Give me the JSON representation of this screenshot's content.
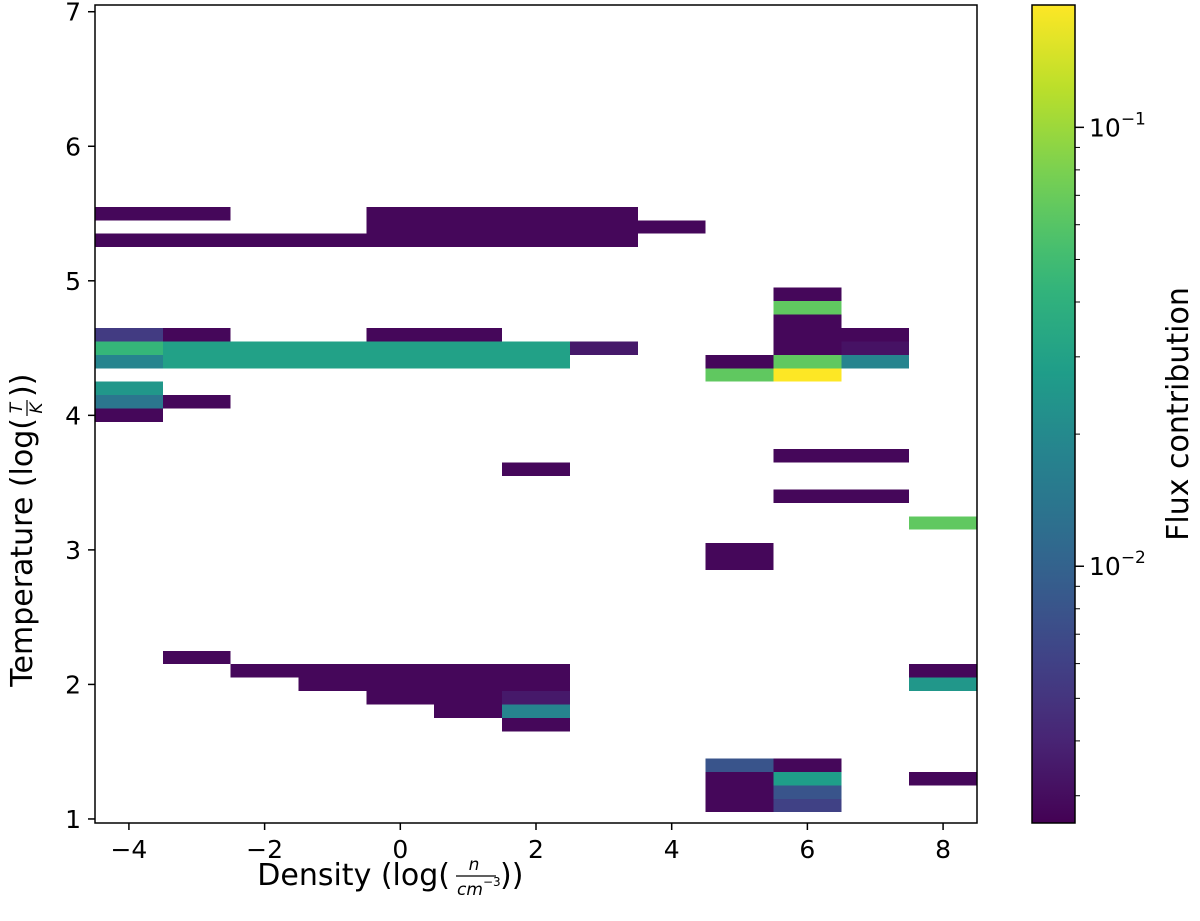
{
  "chart_data": {
    "type": "heatmap",
    "title": "",
    "xlabel": "Density (log(n/cm^-3))",
    "ylabel": "Temperature (log(T/K))",
    "xlim": [
      -4.5,
      8.5
    ],
    "ylim": [
      0.97,
      7.05
    ],
    "x_ticks": [
      -4,
      -2,
      0,
      2,
      4,
      6,
      8
    ],
    "x_tick_labels": [
      "−4",
      "−2",
      "0",
      "2",
      "4",
      "6",
      "8"
    ],
    "y_ticks": [
      1,
      2,
      3,
      4,
      5,
      6,
      7
    ],
    "y_tick_labels": [
      "1",
      "2",
      "3",
      "4",
      "5",
      "6",
      "7"
    ],
    "x_bin_width": 1,
    "y_bin_height": 0.1,
    "colorbar": {
      "label": "Flux contribution",
      "scale": "log",
      "colormap": "viridis",
      "vmin": 0.0026,
      "vmax": 0.19,
      "ticks": [
        0.01,
        0.1
      ],
      "tick_labels": [
        "10^-2",
        "10^-1"
      ]
    },
    "cells": [
      {
        "x": -4,
        "y": 5.5,
        "value": 0.0028
      },
      {
        "x": -3,
        "y": 5.5,
        "value": 0.0028
      },
      {
        "x": 0,
        "y": 5.5,
        "value": 0.0028
      },
      {
        "x": 1,
        "y": 5.5,
        "value": 0.0028
      },
      {
        "x": 2,
        "y": 5.5,
        "value": 0.0028
      },
      {
        "x": 3,
        "y": 5.5,
        "value": 0.0028
      },
      {
        "x": 0,
        "y": 5.4,
        "value": 0.0028
      },
      {
        "x": 1,
        "y": 5.4,
        "value": 0.0028
      },
      {
        "x": 2,
        "y": 5.4,
        "value": 0.0028
      },
      {
        "x": 3,
        "y": 5.4,
        "value": 0.0028
      },
      {
        "x": 4,
        "y": 5.4,
        "value": 0.0028
      },
      {
        "x": -4,
        "y": 5.3,
        "value": 0.0028
      },
      {
        "x": -3,
        "y": 5.3,
        "value": 0.0028
      },
      {
        "x": -2,
        "y": 5.3,
        "value": 0.0028
      },
      {
        "x": -1,
        "y": 5.3,
        "value": 0.0028
      },
      {
        "x": 0,
        "y": 5.3,
        "value": 0.0028
      },
      {
        "x": 1,
        "y": 5.3,
        "value": 0.0028
      },
      {
        "x": 2,
        "y": 5.3,
        "value": 0.0028
      },
      {
        "x": 3,
        "y": 5.3,
        "value": 0.0028
      },
      {
        "x": -4,
        "y": 4.6,
        "value": 0.0055
      },
      {
        "x": -3,
        "y": 4.6,
        "value": 0.0028
      },
      {
        "x": 0,
        "y": 4.6,
        "value": 0.0028
      },
      {
        "x": 1,
        "y": 4.6,
        "value": 0.0028
      },
      {
        "x": -4,
        "y": 4.5,
        "value": 0.045
      },
      {
        "x": -3,
        "y": 4.5,
        "value": 0.03
      },
      {
        "x": -2,
        "y": 4.5,
        "value": 0.03
      },
      {
        "x": -1,
        "y": 4.5,
        "value": 0.03
      },
      {
        "x": 0,
        "y": 4.5,
        "value": 0.03
      },
      {
        "x": 1,
        "y": 4.5,
        "value": 0.03
      },
      {
        "x": 2,
        "y": 4.5,
        "value": 0.03
      },
      {
        "x": 3,
        "y": 4.5,
        "value": 0.0035
      },
      {
        "x": -4,
        "y": 4.4,
        "value": 0.018
      },
      {
        "x": -3,
        "y": 4.4,
        "value": 0.03
      },
      {
        "x": -2,
        "y": 4.4,
        "value": 0.03
      },
      {
        "x": -1,
        "y": 4.4,
        "value": 0.03
      },
      {
        "x": 0,
        "y": 4.4,
        "value": 0.03
      },
      {
        "x": 1,
        "y": 4.4,
        "value": 0.03
      },
      {
        "x": 2,
        "y": 4.4,
        "value": 0.03
      },
      {
        "x": -4,
        "y": 4.2,
        "value": 0.025
      },
      {
        "x": -4,
        "y": 4.1,
        "value": 0.014
      },
      {
        "x": -3,
        "y": 4.1,
        "value": 0.0028
      },
      {
        "x": -4,
        "y": 4.0,
        "value": 0.0028
      },
      {
        "x": 2,
        "y": 3.6,
        "value": 0.0028
      },
      {
        "x": -3,
        "y": 2.2,
        "value": 0.0028
      },
      {
        "x": -2,
        "y": 2.1,
        "value": 0.0028
      },
      {
        "x": -1,
        "y": 2.1,
        "value": 0.0028
      },
      {
        "x": 0,
        "y": 2.1,
        "value": 0.0028
      },
      {
        "x": 1,
        "y": 2.1,
        "value": 0.0028
      },
      {
        "x": 2,
        "y": 2.1,
        "value": 0.0028
      },
      {
        "x": -1,
        "y": 2.0,
        "value": 0.0028
      },
      {
        "x": 0,
        "y": 2.0,
        "value": 0.0028
      },
      {
        "x": 1,
        "y": 2.0,
        "value": 0.0028
      },
      {
        "x": 2,
        "y": 2.0,
        "value": 0.0028
      },
      {
        "x": 0,
        "y": 1.9,
        "value": 0.0028
      },
      {
        "x": 1,
        "y": 1.9,
        "value": 0.0028
      },
      {
        "x": 2,
        "y": 1.9,
        "value": 0.0035
      },
      {
        "x": 1,
        "y": 1.8,
        "value": 0.0028
      },
      {
        "x": 2,
        "y": 1.8,
        "value": 0.018
      },
      {
        "x": 2,
        "y": 1.7,
        "value": 0.0028
      },
      {
        "x": 5,
        "y": 4.4,
        "value": 0.0028
      },
      {
        "x": 5,
        "y": 4.3,
        "value": 0.065
      },
      {
        "x": 5,
        "y": 3.0,
        "value": 0.0028
      },
      {
        "x": 5,
        "y": 2.9,
        "value": 0.0028
      },
      {
        "x": 5,
        "y": 1.4,
        "value": 0.008
      },
      {
        "x": 5,
        "y": 1.3,
        "value": 0.0028
      },
      {
        "x": 5,
        "y": 1.2,
        "value": 0.0028
      },
      {
        "x": 5,
        "y": 1.1,
        "value": 0.0028
      },
      {
        "x": 6,
        "y": 4.9,
        "value": 0.0028
      },
      {
        "x": 6,
        "y": 4.8,
        "value": 0.065
      },
      {
        "x": 6,
        "y": 4.7,
        "value": 0.0028
      },
      {
        "x": 6,
        "y": 4.6,
        "value": 0.0028
      },
      {
        "x": 6,
        "y": 4.5,
        "value": 0.0028
      },
      {
        "x": 6,
        "y": 4.4,
        "value": 0.065
      },
      {
        "x": 6,
        "y": 4.3,
        "value": 0.19
      },
      {
        "x": 6,
        "y": 3.7,
        "value": 0.0028
      },
      {
        "x": 6,
        "y": 3.4,
        "value": 0.0028
      },
      {
        "x": 6,
        "y": 1.4,
        "value": 0.0028
      },
      {
        "x": 6,
        "y": 1.3,
        "value": 0.028
      },
      {
        "x": 6,
        "y": 1.2,
        "value": 0.008
      },
      {
        "x": 6,
        "y": 1.1,
        "value": 0.006
      },
      {
        "x": 7,
        "y": 4.6,
        "value": 0.0028
      },
      {
        "x": 7,
        "y": 4.5,
        "value": 0.0032
      },
      {
        "x": 7,
        "y": 4.4,
        "value": 0.018
      },
      {
        "x": 7,
        "y": 3.7,
        "value": 0.0028
      },
      {
        "x": 7,
        "y": 3.4,
        "value": 0.0028
      },
      {
        "x": 8,
        "y": 3.2,
        "value": 0.065
      },
      {
        "x": 8,
        "y": 2.1,
        "value": 0.0028
      },
      {
        "x": 8,
        "y": 2.0,
        "value": 0.025
      },
      {
        "x": 8,
        "y": 1.3,
        "value": 0.0028
      }
    ]
  }
}
